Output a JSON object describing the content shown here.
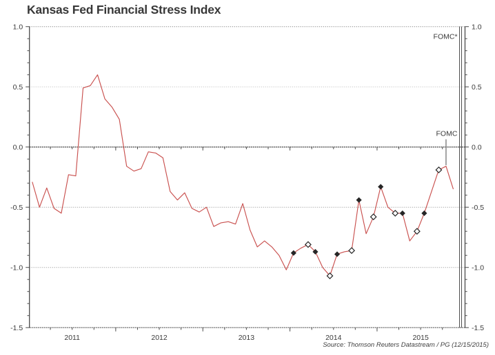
{
  "chart_data": {
    "type": "line",
    "title": "Kansas Fed Financial Stress Index",
    "source": "Source: Thomson Reuters Datastream / PG (12/15/2015)",
    "y_axis": {
      "min": -1.5,
      "max": 1.0,
      "tick_labels": [
        "1.0",
        "0.5",
        "0.0",
        "-0.5",
        "-1.0",
        "-1.5"
      ],
      "tick_values": [
        1.0,
        0.5,
        0.0,
        -0.5,
        -1.0,
        -1.5
      ],
      "minor_tick_step": 0.1,
      "zero_line_solid": true,
      "label_sides": [
        "left",
        "right"
      ],
      "grid": "dotted"
    },
    "x_axis": {
      "start_month": "2011-01",
      "end_month": "2016-01",
      "year_labels": [
        "2011",
        "2012",
        "2013",
        "2014",
        "2015"
      ],
      "minor_ticks": "quarterly"
    },
    "series": [
      {
        "name": "Kansas Fed Financial Stress Index",
        "color": "#c9504e",
        "frequency": "monthly",
        "start_month": "2011-01",
        "values": [
          -0.29,
          -0.5,
          -0.34,
          -0.51,
          -0.55,
          -0.23,
          -0.24,
          0.49,
          0.51,
          0.6,
          0.4,
          0.33,
          0.23,
          -0.16,
          -0.2,
          -0.18,
          -0.04,
          -0.05,
          -0.09,
          -0.37,
          -0.44,
          -0.38,
          -0.51,
          -0.54,
          -0.5,
          -0.66,
          -0.63,
          -0.62,
          -0.64,
          -0.47,
          -0.69,
          -0.83,
          -0.78,
          -0.83,
          -0.9,
          -1.02,
          -0.88,
          -0.84,
          -0.81,
          -0.87,
          -1.0,
          -1.07,
          -0.89,
          -0.87,
          -0.86,
          -0.44,
          -0.72,
          -0.58,
          -0.33,
          -0.5,
          -0.55,
          -0.55,
          -0.78,
          -0.7,
          -0.55,
          -0.37,
          -0.19,
          -0.16,
          -0.35
        ]
      }
    ],
    "fomc_markers": {
      "filled_months": [
        "2014-01",
        "2014-04",
        "2014-07",
        "2014-10",
        "2015-01",
        "2015-04",
        "2015-07"
      ],
      "open_months": [
        "2014-03",
        "2014-06",
        "2014-09",
        "2014-12",
        "2015-03",
        "2015-06",
        "2015-09"
      ]
    },
    "annotations": {
      "fomc_next": {
        "label": "FOMC*",
        "type": "full-height-double-line",
        "month": "2015-12"
      },
      "fomc_last": {
        "label": "FOMC",
        "type": "pointer-line",
        "month": "2015-10"
      }
    }
  },
  "colors": {
    "line": "#c9504e",
    "axis": "#4a4a4a",
    "text": "#3a3a3a",
    "grid_dark": "#8a8a8a",
    "grid_light": "#b8b8b8",
    "frame_dotted": "#666666",
    "marker": "#262626",
    "marker_open_fill": "#ffffff"
  }
}
